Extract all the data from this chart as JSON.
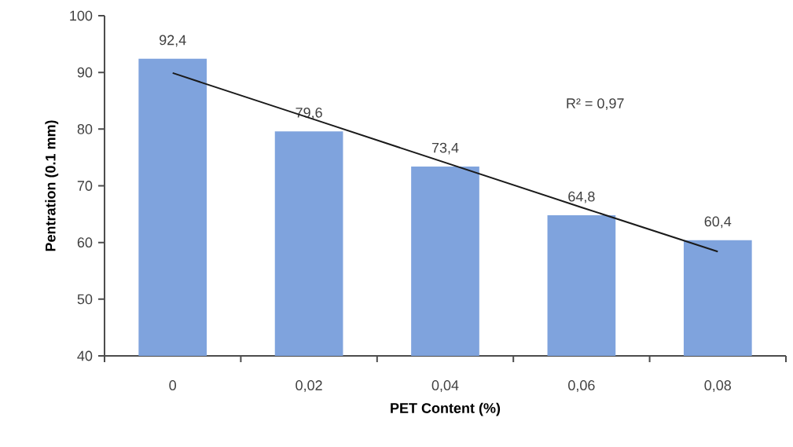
{
  "chart_data": {
    "type": "bar",
    "xlabel": "PET Content (%)",
    "ylabel": "Pentration (0.1 mm)",
    "categories": [
      "0",
      "0,02",
      "0,04",
      "0,06",
      "0,08"
    ],
    "series": [
      {
        "color": "#7fa3dd",
        "values": [
          92.4,
          79.6,
          73.4,
          64.8,
          60.4
        ],
        "value_labels": [
          "92,4",
          "79,6",
          "73,4",
          "64,8",
          "60,4"
        ]
      },
      {
        "type": "line",
        "color": "#1a1a1a",
        "values": [
          89.9,
          82.0,
          74.1,
          66.2,
          58.4
        ]
      }
    ],
    "annotations": [
      "R² = 0,97"
    ],
    "ylim": [
      40,
      100
    ],
    "yticks": [
      40,
      50,
      60,
      70,
      80,
      90,
      100
    ],
    "grid": false
  }
}
